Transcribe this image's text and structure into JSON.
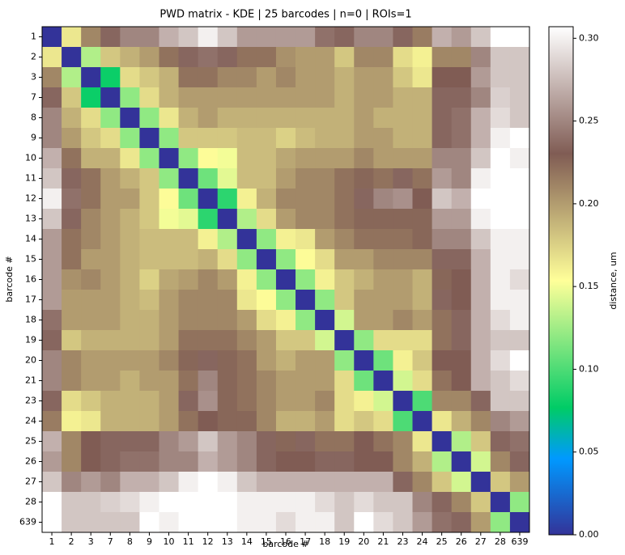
{
  "chart_data": {
    "type": "heatmap",
    "title": "PWD matrix - KDE | 25 barcodes | n=0 | ROIs=1",
    "x_label": "barcode #",
    "y_label": "barcode #",
    "colorbar_label": "distance, um",
    "colormap": "terrain",
    "clim": [
      0,
      0.307
    ],
    "colorbar_ticks": [
      {
        "value": 0,
        "label": "0.00"
      },
      {
        "value": 0.05,
        "label": "0.05"
      },
      {
        "value": 0.1,
        "label": "0.10"
      },
      {
        "value": 0.15,
        "label": "0.15"
      },
      {
        "value": 0.2,
        "label": "0.20"
      },
      {
        "value": 0.25,
        "label": "0.25"
      },
      {
        "value": 0.3,
        "label": "0.30"
      }
    ],
    "categories": [
      "1",
      "2",
      "3",
      "7",
      "8",
      "9",
      "10",
      "11",
      "12",
      "13",
      "14",
      "15",
      "16",
      "17",
      "18",
      "19",
      "20",
      "21",
      "23",
      "24",
      "25",
      "26",
      "27",
      "28",
      "639"
    ],
    "values": [
      [
        0,
        0.165,
        0.21,
        0.235,
        0.25,
        0.25,
        0.27,
        0.28,
        0.3,
        0.28,
        0.26,
        0.26,
        0.26,
        0.26,
        0.24,
        0.235,
        0.25,
        0.25,
        0.235,
        0.215,
        0.27,
        0.26,
        0.28,
        0.31,
        0.31
      ],
      [
        0.165,
        0,
        0.13,
        0.18,
        0.19,
        0.2,
        0.22,
        0.235,
        0.24,
        0.235,
        0.22,
        0.22,
        0.205,
        0.2,
        0.2,
        0.18,
        0.21,
        0.21,
        0.17,
        0.16,
        0.21,
        0.21,
        0.25,
        0.28,
        0.28
      ],
      [
        0.21,
        0.13,
        0,
        0.08,
        0.17,
        0.18,
        0.19,
        0.22,
        0.22,
        0.21,
        0.21,
        0.2,
        0.21,
        0.2,
        0.2,
        0.19,
        0.2,
        0.2,
        0.18,
        0.165,
        0.23,
        0.23,
        0.26,
        0.28,
        0.28
      ],
      [
        0.235,
        0.18,
        0.08,
        0,
        0.12,
        0.17,
        0.19,
        0.2,
        0.2,
        0.2,
        0.2,
        0.2,
        0.2,
        0.2,
        0.2,
        0.19,
        0.2,
        0.2,
        0.19,
        0.19,
        0.235,
        0.235,
        0.25,
        0.285,
        0.28
      ],
      [
        0.25,
        0.19,
        0.17,
        0.12,
        0,
        0.12,
        0.165,
        0.19,
        0.2,
        0.19,
        0.19,
        0.19,
        0.19,
        0.19,
        0.19,
        0.19,
        0.2,
        0.19,
        0.19,
        0.19,
        0.235,
        0.24,
        0.27,
        0.29,
        0.28
      ],
      [
        0.25,
        0.2,
        0.18,
        0.17,
        0.12,
        0,
        0.12,
        0.18,
        0.18,
        0.18,
        0.185,
        0.185,
        0.175,
        0.185,
        0.19,
        0.19,
        0.2,
        0.2,
        0.19,
        0.19,
        0.235,
        0.24,
        0.27,
        0.3,
        0.31
      ],
      [
        0.27,
        0.22,
        0.19,
        0.19,
        0.165,
        0.12,
        0,
        0.12,
        0.155,
        0.15,
        0.185,
        0.185,
        0.195,
        0.2,
        0.2,
        0.2,
        0.21,
        0.2,
        0.2,
        0.2,
        0.25,
        0.25,
        0.28,
        0.31,
        0.3
      ],
      [
        0.28,
        0.235,
        0.22,
        0.2,
        0.19,
        0.18,
        0.12,
        0,
        0.11,
        0.145,
        0.185,
        0.185,
        0.2,
        0.21,
        0.21,
        0.22,
        0.225,
        0.22,
        0.235,
        0.22,
        0.26,
        0.25,
        0.3,
        0.31,
        0.31
      ],
      [
        0.3,
        0.24,
        0.22,
        0.2,
        0.2,
        0.18,
        0.155,
        0.11,
        0,
        0.09,
        0.16,
        0.19,
        0.21,
        0.21,
        0.21,
        0.22,
        0.235,
        0.25,
        0.255,
        0.23,
        0.28,
        0.27,
        0.31,
        0.31,
        0.31
      ],
      [
        0.28,
        0.235,
        0.21,
        0.2,
        0.19,
        0.18,
        0.15,
        0.145,
        0.09,
        0,
        0.13,
        0.17,
        0.2,
        0.21,
        0.21,
        0.22,
        0.225,
        0.225,
        0.225,
        0.225,
        0.26,
        0.26,
        0.3,
        0.31,
        0.31
      ],
      [
        0.26,
        0.22,
        0.21,
        0.2,
        0.19,
        0.185,
        0.185,
        0.185,
        0.16,
        0.13,
        0,
        0.12,
        0.16,
        0.165,
        0.2,
        0.21,
        0.22,
        0.22,
        0.22,
        0.225,
        0.25,
        0.25,
        0.28,
        0.3,
        0.3
      ],
      [
        0.26,
        0.22,
        0.2,
        0.2,
        0.19,
        0.185,
        0.185,
        0.185,
        0.19,
        0.17,
        0.12,
        0,
        0.12,
        0.155,
        0.17,
        0.2,
        0.2,
        0.21,
        0.21,
        0.21,
        0.235,
        0.235,
        0.27,
        0.3,
        0.3
      ],
      [
        0.26,
        0.205,
        0.21,
        0.2,
        0.19,
        0.175,
        0.195,
        0.2,
        0.21,
        0.2,
        0.16,
        0.12,
        0,
        0.12,
        0.16,
        0.18,
        0.19,
        0.2,
        0.2,
        0.19,
        0.225,
        0.23,
        0.27,
        0.3,
        0.29
      ],
      [
        0.26,
        0.2,
        0.2,
        0.2,
        0.19,
        0.185,
        0.2,
        0.21,
        0.21,
        0.21,
        0.165,
        0.155,
        0.12,
        0,
        0.12,
        0.18,
        0.2,
        0.2,
        0.2,
        0.19,
        0.235,
        0.23,
        0.27,
        0.3,
        0.3
      ],
      [
        0.24,
        0.2,
        0.2,
        0.2,
        0.19,
        0.19,
        0.2,
        0.21,
        0.21,
        0.21,
        0.2,
        0.17,
        0.16,
        0.12,
        0,
        0.14,
        0.2,
        0.2,
        0.21,
        0.2,
        0.22,
        0.235,
        0.27,
        0.29,
        0.3
      ],
      [
        0.235,
        0.18,
        0.19,
        0.19,
        0.19,
        0.19,
        0.2,
        0.22,
        0.22,
        0.22,
        0.21,
        0.2,
        0.18,
        0.18,
        0.14,
        0,
        0.12,
        0.17,
        0.17,
        0.17,
        0.22,
        0.235,
        0.27,
        0.28,
        0.28
      ],
      [
        0.25,
        0.21,
        0.2,
        0.2,
        0.2,
        0.2,
        0.21,
        0.225,
        0.235,
        0.225,
        0.22,
        0.2,
        0.19,
        0.2,
        0.2,
        0.12,
        0,
        0.11,
        0.16,
        0.18,
        0.23,
        0.23,
        0.27,
        0.29,
        0.31
      ],
      [
        0.25,
        0.21,
        0.2,
        0.2,
        0.19,
        0.2,
        0.2,
        0.22,
        0.25,
        0.225,
        0.22,
        0.21,
        0.2,
        0.2,
        0.2,
        0.17,
        0.11,
        0,
        0.14,
        0.17,
        0.22,
        0.23,
        0.27,
        0.28,
        0.29
      ],
      [
        0.235,
        0.17,
        0.18,
        0.19,
        0.19,
        0.19,
        0.2,
        0.235,
        0.255,
        0.225,
        0.22,
        0.21,
        0.2,
        0.2,
        0.21,
        0.17,
        0.16,
        0.14,
        0,
        0.1,
        0.21,
        0.21,
        0.235,
        0.28,
        0.28
      ],
      [
        0.215,
        0.16,
        0.165,
        0.19,
        0.19,
        0.19,
        0.2,
        0.22,
        0.23,
        0.225,
        0.225,
        0.21,
        0.19,
        0.19,
        0.2,
        0.17,
        0.18,
        0.17,
        0.1,
        0,
        0.165,
        0.19,
        0.21,
        0.25,
        0.26
      ],
      [
        0.27,
        0.21,
        0.23,
        0.235,
        0.235,
        0.235,
        0.25,
        0.26,
        0.28,
        0.26,
        0.25,
        0.235,
        0.225,
        0.235,
        0.22,
        0.22,
        0.23,
        0.22,
        0.21,
        0.165,
        0,
        0.13,
        0.18,
        0.235,
        0.24
      ],
      [
        0.26,
        0.21,
        0.23,
        0.235,
        0.24,
        0.24,
        0.25,
        0.25,
        0.27,
        0.26,
        0.25,
        0.235,
        0.23,
        0.23,
        0.235,
        0.235,
        0.23,
        0.23,
        0.21,
        0.19,
        0.13,
        0,
        0.14,
        0.21,
        0.235
      ],
      [
        0.28,
        0.25,
        0.26,
        0.25,
        0.27,
        0.27,
        0.28,
        0.3,
        0.31,
        0.3,
        0.28,
        0.27,
        0.27,
        0.27,
        0.27,
        0.27,
        0.27,
        0.27,
        0.235,
        0.21,
        0.18,
        0.14,
        0,
        0.18,
        0.2
      ],
      [
        0.31,
        0.28,
        0.28,
        0.285,
        0.29,
        0.3,
        0.31,
        0.31,
        0.31,
        0.31,
        0.3,
        0.3,
        0.3,
        0.3,
        0.29,
        0.28,
        0.29,
        0.28,
        0.28,
        0.25,
        0.235,
        0.21,
        0.18,
        0,
        0.12
      ],
      [
        0.31,
        0.28,
        0.28,
        0.28,
        0.28,
        0.31,
        0.3,
        0.31,
        0.31,
        0.31,
        0.3,
        0.3,
        0.29,
        0.3,
        0.3,
        0.28,
        0.31,
        0.29,
        0.28,
        0.26,
        0.24,
        0.235,
        0.2,
        0.12,
        0
      ]
    ]
  }
}
